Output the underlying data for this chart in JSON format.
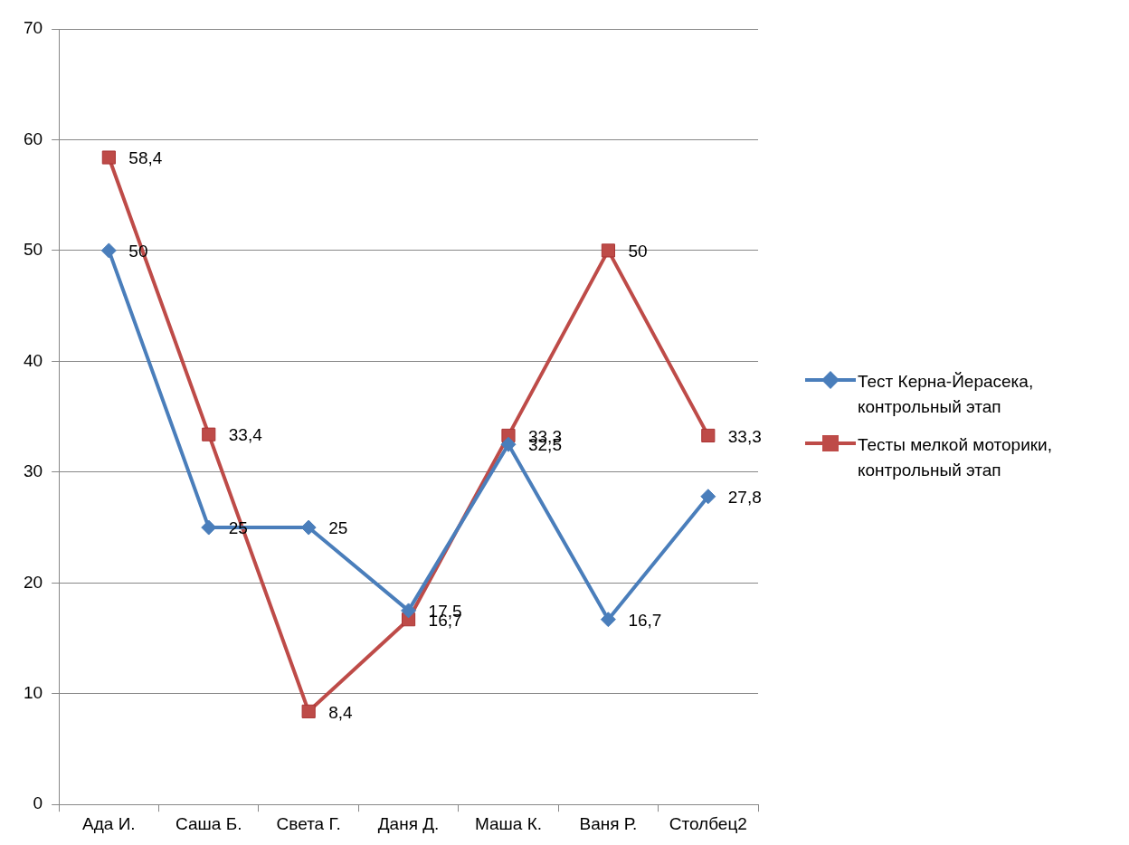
{
  "chart_data": {
    "type": "line",
    "categories": [
      "Ада И.",
      "Саша Б.",
      "Света Г.",
      "Даня Д.",
      "Маша К.",
      "Ваня Р.",
      "Столбец2"
    ],
    "series": [
      {
        "name": "Тест Керна-Йерасека, контрольный этап",
        "color": "#4a7ebb",
        "marker": "diamond",
        "values": [
          50,
          25,
          25,
          17.5,
          32.5,
          16.7,
          27.8
        ],
        "value_labels": [
          "50",
          "25",
          "25",
          "17,5",
          "32,5",
          "16,7",
          "27,8"
        ]
      },
      {
        "name": "Тесты мелкой моторики, контрольный этап",
        "color": "#be4b48",
        "marker": "square",
        "values": [
          58.4,
          33.4,
          8.4,
          16.7,
          33.3,
          50,
          33.3
        ],
        "value_labels": [
          "58,4",
          "33,4",
          "8,4",
          "16,7",
          "33,3",
          "50",
          "33,3"
        ]
      }
    ],
    "ylim": [
      0,
      70
    ],
    "yticks": [
      0,
      10,
      20,
      30,
      40,
      50,
      60,
      70
    ],
    "grid": "y",
    "legend": "right"
  }
}
